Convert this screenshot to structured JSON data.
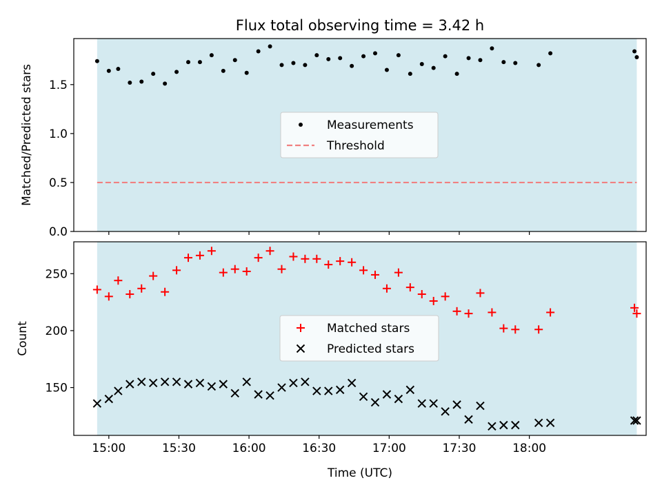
{
  "chart_data": [
    {
      "type": "scatter",
      "title": "Flux total observing time = 3.42 h",
      "ylabel": "Matched/Predicted stars",
      "xlabel": "",
      "ylim": [
        0,
        1.97
      ],
      "xlim": [
        "14:45",
        "18:50"
      ],
      "yticks": [
        "0.0",
        "0.5",
        "1.0",
        "1.5"
      ],
      "grid": false,
      "legend": "center",
      "observing_window": {
        "start": "14:55",
        "end": "18:46",
        "color": "#d4eaf0"
      },
      "threshold": {
        "name": "Threshold",
        "value": 0.5,
        "color": "#f08080"
      },
      "series": [
        {
          "name": "Measurements",
          "color": "#000000",
          "x": [
            "14:55",
            "15:00",
            "15:04",
            "15:09",
            "15:14",
            "15:19",
            "15:24",
            "15:29",
            "15:34",
            "15:39",
            "15:44",
            "15:49",
            "15:54",
            "15:59",
            "16:04",
            "16:09",
            "16:14",
            "16:19",
            "16:24",
            "16:29",
            "16:34",
            "16:39",
            "16:44",
            "16:49",
            "16:54",
            "16:59",
            "17:04",
            "17:09",
            "17:14",
            "17:19",
            "17:24",
            "17:29",
            "17:34",
            "17:39",
            "17:44",
            "17:49",
            "17:54",
            "18:04",
            "18:09",
            "18:45",
            "18:46"
          ],
          "y": [
            1.74,
            1.64,
            1.66,
            1.52,
            1.53,
            1.61,
            1.51,
            1.63,
            1.73,
            1.73,
            1.8,
            1.64,
            1.75,
            1.62,
            1.84,
            1.89,
            1.7,
            1.72,
            1.7,
            1.8,
            1.76,
            1.77,
            1.69,
            1.79,
            1.82,
            1.65,
            1.8,
            1.61,
            1.71,
            1.67,
            1.79,
            1.61,
            1.77,
            1.75,
            1.87,
            1.73,
            1.72,
            1.7,
            1.82,
            1.84,
            1.78
          ]
        }
      ]
    },
    {
      "type": "scatter",
      "title": "",
      "ylabel": "Count",
      "xlabel": "Time (UTC)",
      "ylim": [
        108,
        278
      ],
      "xlim": [
        "14:45",
        "18:50"
      ],
      "yticks": [
        "150",
        "200",
        "250"
      ],
      "xticks": [
        "15:00",
        "15:30",
        "16:00",
        "16:30",
        "17:00",
        "17:30",
        "18:00"
      ],
      "grid": false,
      "legend": "center",
      "observing_window": {
        "start": "14:55",
        "end": "18:46",
        "color": "#d4eaf0"
      },
      "series": [
        {
          "name": "Matched stars",
          "color": "#ff0000",
          "marker": "+",
          "x": [
            "14:55",
            "15:00",
            "15:04",
            "15:09",
            "15:14",
            "15:19",
            "15:24",
            "15:29",
            "15:34",
            "15:39",
            "15:44",
            "15:49",
            "15:54",
            "15:59",
            "16:04",
            "16:09",
            "16:14",
            "16:19",
            "16:24",
            "16:29",
            "16:34",
            "16:39",
            "16:44",
            "16:49",
            "16:54",
            "16:59",
            "17:04",
            "17:09",
            "17:14",
            "17:19",
            "17:24",
            "17:29",
            "17:34",
            "17:39",
            "17:44",
            "17:49",
            "17:54",
            "18:04",
            "18:09",
            "18:45",
            "18:46"
          ],
          "y": [
            236,
            230,
            244,
            232,
            237,
            248,
            234,
            253,
            264,
            266,
            270,
            251,
            254,
            252,
            264,
            270,
            254,
            265,
            263,
            263,
            258,
            261,
            260,
            253,
            249,
            237,
            251,
            238,
            232,
            226,
            230,
            217,
            215,
            233,
            216,
            202,
            201,
            201,
            216,
            220,
            215
          ]
        },
        {
          "name": "Predicted stars",
          "color": "#000000",
          "marker": "x",
          "x": [
            "14:55",
            "15:00",
            "15:04",
            "15:09",
            "15:14",
            "15:19",
            "15:24",
            "15:29",
            "15:34",
            "15:39",
            "15:44",
            "15:49",
            "15:54",
            "15:59",
            "16:04",
            "16:09",
            "16:14",
            "16:19",
            "16:24",
            "16:29",
            "16:34",
            "16:39",
            "16:44",
            "16:49",
            "16:54",
            "16:59",
            "17:04",
            "17:09",
            "17:14",
            "17:19",
            "17:24",
            "17:29",
            "17:34",
            "17:39",
            "17:44",
            "17:49",
            "17:54",
            "18:04",
            "18:09",
            "18:45",
            "18:46"
          ],
          "y": [
            136,
            140,
            147,
            153,
            155,
            154,
            155,
            155,
            153,
            154,
            151,
            153,
            145,
            155,
            144,
            143,
            150,
            154,
            155,
            147,
            147,
            148,
            154,
            142,
            137,
            144,
            140,
            148,
            136,
            136,
            129,
            135,
            122,
            134,
            116,
            117,
            117,
            119,
            119,
            121,
            121
          ]
        }
      ]
    }
  ]
}
